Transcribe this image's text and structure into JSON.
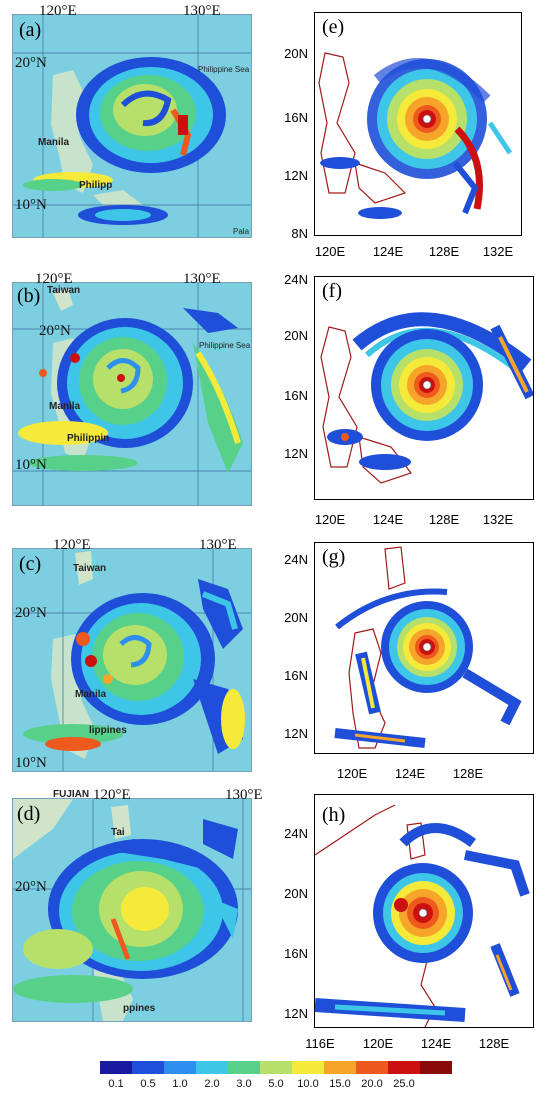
{
  "panels": {
    "a": {
      "label": "(a)",
      "lon_labels": [
        "120°E",
        "130°E"
      ],
      "lat_labels": [
        "20°N",
        "10°N"
      ],
      "place_names": [
        "Philippine Sea",
        "Manila",
        "Philipp",
        "Pala"
      ]
    },
    "b": {
      "label": "(b)",
      "lon_labels": [
        "120°E",
        "130°E"
      ],
      "lat_labels": [
        "20°N",
        "10°N"
      ],
      "place_names": [
        "Taiwan",
        "Philippine Sea",
        "Manila",
        "Philippin"
      ]
    },
    "c": {
      "label": "(c)",
      "lon_labels": [
        "120°E",
        "130°E"
      ],
      "lat_labels": [
        "20°N",
        "10°N"
      ],
      "place_names": [
        "Taiwan",
        "Manila",
        "lippines"
      ]
    },
    "d": {
      "label": "(d)",
      "lon_labels": [
        "120°E",
        "130°E"
      ],
      "lat_labels": [
        "20°N"
      ],
      "place_names": [
        "FUJIAN",
        "Tai",
        "ppines"
      ]
    },
    "e": {
      "label": "(e)",
      "y_ticks": [
        "20N",
        "16N",
        "12N",
        "8N"
      ],
      "x_ticks": [
        "120E",
        "124E",
        "128E",
        "132E"
      ]
    },
    "f": {
      "label": "(f)",
      "y_ticks": [
        "24N",
        "20N",
        "16N",
        "12N"
      ],
      "x_ticks": [
        "120E",
        "124E",
        "128E",
        "132E"
      ]
    },
    "g": {
      "label": "(g)",
      "y_ticks": [
        "24N",
        "20N",
        "16N",
        "12N"
      ],
      "x_ticks": [
        "120E",
        "124E",
        "128E"
      ]
    },
    "h": {
      "label": "(h)",
      "y_ticks": [
        "24N",
        "20N",
        "16N",
        "12N"
      ],
      "x_ticks": [
        "116E",
        "120E",
        "124E",
        "128E"
      ]
    }
  },
  "colorbar": {
    "levels": [
      "0.1",
      "0.5",
      "1.0",
      "2.0",
      "3.0",
      "5.0",
      "10.0",
      "15.0",
      "20.0",
      "25.0",
      ""
    ],
    "colors": [
      "#1a1aa0",
      "#1f4fd8",
      "#2f8ff0",
      "#3ec6e8",
      "#57d08a",
      "#b6e06a",
      "#f5ea3a",
      "#f7a52a",
      "#ee5a1e",
      "#cc1010",
      "#8a0a0a"
    ]
  }
}
